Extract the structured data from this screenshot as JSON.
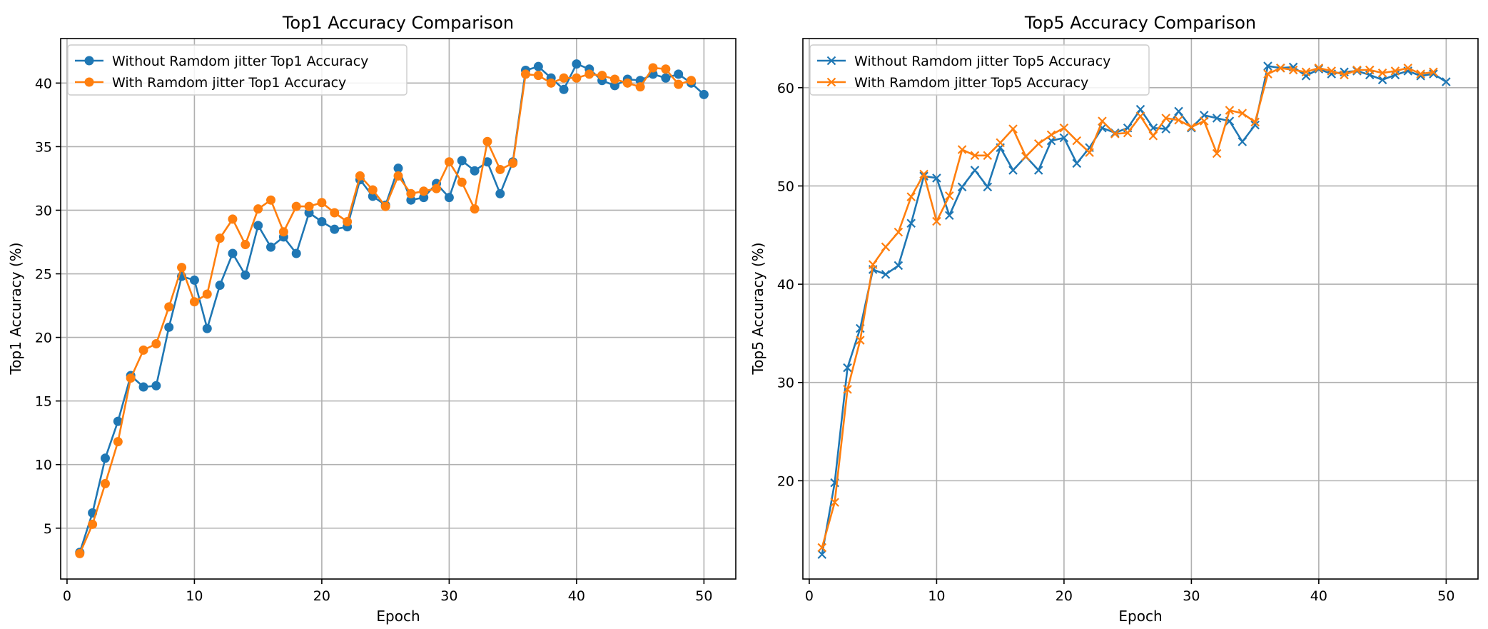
{
  "chart_data": [
    {
      "type": "line",
      "title": "Top1 Accuracy Comparison",
      "xlabel": "Epoch",
      "ylabel": "Top1 Accuracy (%)",
      "xlim": [
        -0.5,
        52.5
      ],
      "ylim": [
        1.0,
        43.5
      ],
      "xticks": [
        0,
        10,
        20,
        30,
        40,
        50
      ],
      "yticks": [
        5,
        10,
        15,
        20,
        25,
        30,
        35,
        40
      ],
      "marker": "circle",
      "grid": true,
      "legend_position": "top-left",
      "x": [
        1,
        2,
        3,
        4,
        5,
        6,
        7,
        8,
        9,
        10,
        11,
        12,
        13,
        14,
        15,
        16,
        17,
        18,
        19,
        20,
        21,
        22,
        23,
        24,
        25,
        26,
        27,
        28,
        29,
        30,
        31,
        32,
        33,
        34,
        35,
        36,
        37,
        38,
        39,
        40,
        41,
        42,
        43,
        44,
        45,
        46,
        47,
        48,
        49,
        50
      ],
      "series": [
        {
          "name": "Without Ramdom jitter Top1 Accuracy",
          "color": "#1f77b4",
          "values": [
            3.1,
            6.2,
            10.5,
            13.4,
            17.0,
            16.1,
            16.2,
            20.8,
            24.8,
            24.5,
            20.7,
            24.1,
            26.6,
            24.9,
            28.8,
            27.1,
            27.9,
            26.6,
            29.8,
            29.1,
            28.5,
            28.7,
            32.4,
            31.1,
            30.4,
            33.3,
            30.8,
            31.0,
            32.1,
            31.0,
            33.9,
            33.1,
            33.8,
            31.3,
            33.8,
            41.0,
            41.3,
            40.4,
            39.5,
            41.5,
            41.1,
            40.2,
            39.8,
            40.3,
            40.2,
            40.7,
            40.4,
            40.7,
            40.0,
            39.1
          ]
        },
        {
          "name": "With Ramdom jitter Top1 Accuracy",
          "color": "#ff7f0e",
          "values": [
            3.0,
            5.3,
            8.5,
            11.8,
            16.8,
            19.0,
            19.5,
            22.4,
            25.5,
            22.8,
            23.4,
            27.8,
            29.3,
            27.3,
            30.1,
            30.8,
            28.3,
            30.3,
            30.3,
            30.6,
            29.8,
            29.1,
            32.7,
            31.6,
            30.3,
            32.7,
            31.3,
            31.5,
            31.7,
            33.8,
            32.2,
            30.1,
            35.4,
            33.2,
            33.7,
            40.7,
            40.6,
            40.0,
            40.4,
            40.4,
            40.7,
            40.6,
            40.3,
            40.0,
            39.7,
            41.2,
            41.1,
            39.9,
            40.2,
            null
          ]
        }
      ]
    },
    {
      "type": "line",
      "title": "Top5 Accuracy Comparison",
      "xlabel": "Epoch",
      "ylabel": "Top5 Accuracy (%)",
      "xlim": [
        -0.5,
        52.5
      ],
      "ylim": [
        10.0,
        65.0
      ],
      "xticks": [
        0,
        10,
        20,
        30,
        40,
        50
      ],
      "yticks": [
        20,
        30,
        40,
        50,
        60
      ],
      "marker": "x",
      "grid": true,
      "legend_position": "top-left",
      "x": [
        1,
        2,
        3,
        4,
        5,
        6,
        7,
        8,
        9,
        10,
        11,
        12,
        13,
        14,
        15,
        16,
        17,
        18,
        19,
        20,
        21,
        22,
        23,
        24,
        25,
        26,
        27,
        28,
        29,
        30,
        31,
        32,
        33,
        34,
        35,
        36,
        37,
        38,
        39,
        40,
        41,
        42,
        43,
        44,
        45,
        46,
        47,
        48,
        49,
        50
      ],
      "series": [
        {
          "name": "Without Ramdom jitter Top5 Accuracy",
          "color": "#1f77b4",
          "values": [
            12.5,
            19.8,
            31.5,
            35.5,
            41.5,
            41.0,
            41.9,
            46.2,
            51.0,
            50.8,
            47.0,
            49.9,
            51.6,
            49.9,
            53.9,
            51.6,
            53.0,
            51.6,
            54.6,
            54.9,
            52.3,
            53.9,
            55.9,
            55.4,
            55.9,
            57.8,
            55.9,
            55.8,
            57.6,
            55.9,
            57.2,
            56.9,
            56.6,
            54.5,
            56.2,
            62.2,
            62.0,
            62.1,
            61.2,
            61.9,
            61.4,
            61.6,
            61.7,
            61.3,
            60.8,
            61.3,
            61.7,
            61.2,
            61.4,
            60.6
          ]
        },
        {
          "name": "With Ramdom jitter Top5 Accuracy",
          "color": "#ff7f0e",
          "values": [
            13.2,
            17.8,
            29.3,
            34.3,
            42.0,
            43.8,
            45.3,
            48.9,
            51.2,
            46.4,
            49.0,
            53.7,
            53.1,
            53.1,
            54.4,
            55.8,
            53.0,
            54.3,
            55.2,
            55.9,
            54.6,
            53.4,
            56.6,
            55.3,
            55.4,
            57.1,
            55.1,
            56.9,
            56.7,
            56.0,
            56.6,
            53.3,
            57.7,
            57.4,
            56.5,
            61.4,
            62.0,
            61.8,
            61.6,
            62.0,
            61.7,
            61.3,
            61.8,
            61.8,
            61.5,
            61.7,
            62.0,
            61.4,
            61.6,
            null
          ]
        }
      ]
    }
  ]
}
